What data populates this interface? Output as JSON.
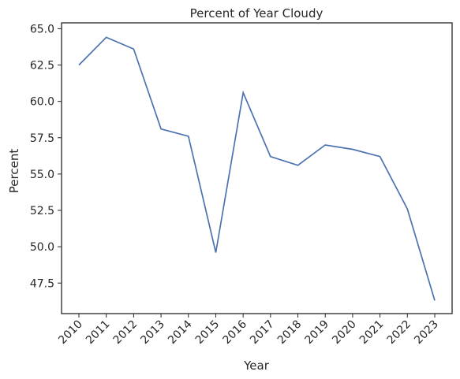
{
  "chart_data": {
    "type": "line",
    "title": "Percent of Year Cloudy",
    "xlabel": "Year",
    "ylabel": "Percent",
    "x": [
      "2010",
      "2011",
      "2012",
      "2013",
      "2014",
      "2015",
      "2016",
      "2017",
      "2018",
      "2019",
      "2020",
      "2021",
      "2022",
      "2023"
    ],
    "y": [
      62.5,
      64.4,
      63.6,
      58.1,
      57.6,
      49.6,
      60.6,
      56.2,
      55.6,
      57.0,
      56.7,
      56.2,
      52.6,
      46.3
    ],
    "yticks": [
      47.5,
      50.0,
      52.5,
      55.0,
      57.5,
      60.0,
      62.5,
      65.0
    ],
    "ytick_labels": [
      "47.5",
      "50.0",
      "52.5",
      "55.0",
      "57.5",
      "60.0",
      "62.5",
      "65.0"
    ],
    "ylim": [
      45.4,
      65.4
    ],
    "grid": false,
    "colors": {
      "line": "#4c72b0",
      "axes": "#262626"
    }
  }
}
